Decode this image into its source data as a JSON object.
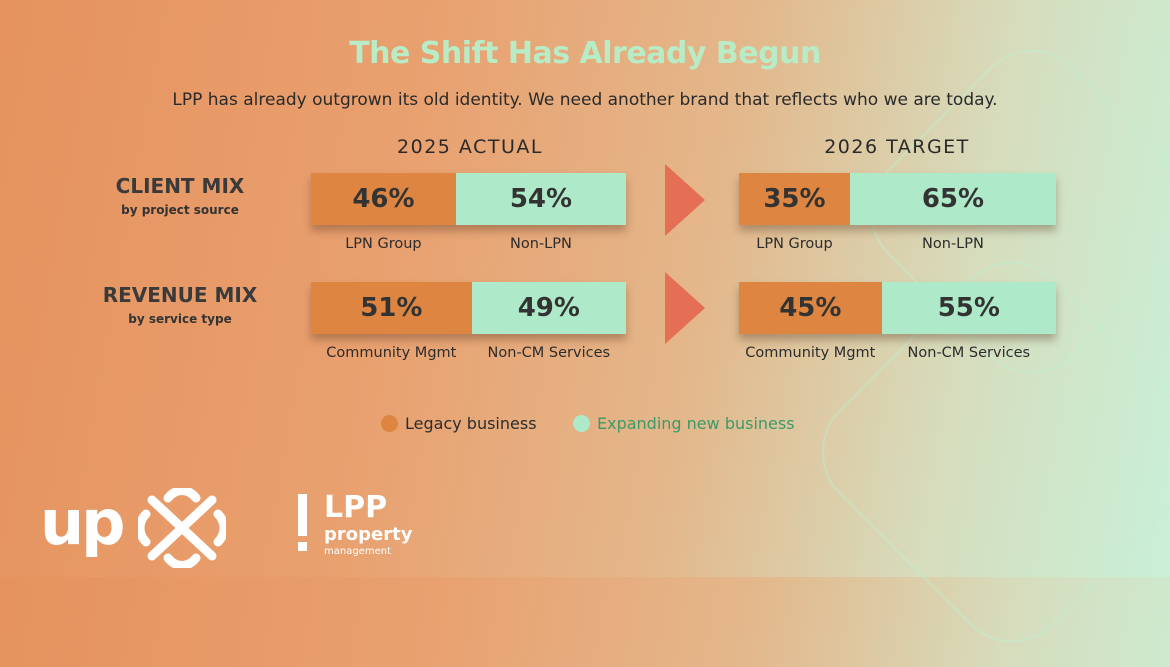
{
  "title": "The Shift Has Already Begun",
  "subtitle": "LPP has already outgrown its old identity. We need another brand that reflects who we are today.",
  "columns": [
    "2025  ACTUAL",
    "2026  TARGET"
  ],
  "rows": [
    {
      "label": "CLIENT MIX",
      "sublabel": "by project source"
    },
    {
      "label": "REVENUE MIX",
      "sublabel": "by service type"
    }
  ],
  "colors": {
    "legacy": "#dd8541",
    "new": "#aee9c9",
    "arrow": "#e46f54",
    "title": "#b8ecc6"
  },
  "legend": {
    "legacy": "Legacy business",
    "new": "Expanding new business"
  },
  "logos": {
    "up": "up",
    "lpp": "LPP",
    "lpp_line2": "property",
    "lpp_line3": "management"
  },
  "chart_data": {
    "type": "bar",
    "stacked": true,
    "orientation": "horizontal",
    "title": "The Shift Has Already Begun",
    "panels": [
      {
        "column": "2025 ACTUAL",
        "row": "CLIENT MIX",
        "segments": [
          {
            "label": "LPN Group",
            "value": 46,
            "text": "46%",
            "kind": "legacy"
          },
          {
            "label": "Non-LPN",
            "value": 54,
            "text": "54%",
            "kind": "new"
          }
        ]
      },
      {
        "column": "2026 TARGET",
        "row": "CLIENT MIX",
        "segments": [
          {
            "label": "LPN Group",
            "value": 35,
            "text": "35%",
            "kind": "legacy"
          },
          {
            "label": "Non-LPN",
            "value": 65,
            "text": "65%",
            "kind": "new"
          }
        ]
      },
      {
        "column": "2025 ACTUAL",
        "row": "REVENUE MIX",
        "segments": [
          {
            "label": "Community Mgmt",
            "value": 51,
            "text": "51%",
            "kind": "legacy"
          },
          {
            "label": "Non-CM Services",
            "value": 49,
            "text": "49%",
            "kind": "new"
          }
        ]
      },
      {
        "column": "2026 TARGET",
        "row": "REVENUE MIX",
        "segments": [
          {
            "label": "Community Mgmt",
            "value": 45,
            "text": "45%",
            "kind": "legacy"
          },
          {
            "label": "Non-CM Services",
            "value": 55,
            "text": "55%",
            "kind": "new"
          }
        ]
      }
    ],
    "legend": [
      "Legacy business",
      "Expanding new business"
    ],
    "legend_placement": "bottom"
  }
}
